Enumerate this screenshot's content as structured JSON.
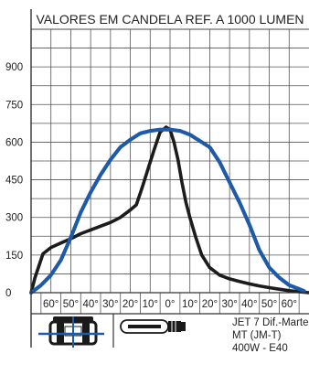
{
  "chart_data": {
    "type": "line",
    "title": "VALORES EM CANDELA REF. A 1000 LUMEN",
    "xlabel": "",
    "ylabel": "",
    "y_ticks": [
      "0",
      "150",
      "300",
      "450",
      "600",
      "750",
      "900"
    ],
    "x_ticks": [
      "60°",
      "50°",
      "40°",
      "30°",
      "20°",
      "10°",
      "0°",
      "10°",
      "20°",
      "30°",
      "40°",
      "50°",
      "60°"
    ],
    "xlim": [
      -70,
      70
    ],
    "ylim": [
      0,
      1050
    ],
    "grid": true,
    "series": [
      {
        "color": "#1c1c1c",
        "style": "solid",
        "x": [
          -70,
          -68,
          -64,
          -60,
          -55,
          -50,
          -45,
          -40,
          -35,
          -30,
          -25,
          -20,
          -17,
          -14,
          -11,
          -8,
          -5,
          -2,
          0,
          2,
          4,
          6,
          8,
          10,
          13,
          16,
          20,
          25,
          30,
          35,
          40,
          45,
          50,
          55,
          60,
          65,
          70
        ],
        "y": [
          0,
          60,
          155,
          180,
          198,
          215,
          235,
          250,
          265,
          280,
          300,
          330,
          350,
          420,
          495,
          570,
          640,
          660,
          650,
          600,
          530,
          440,
          360,
          300,
          220,
          150,
          100,
          70,
          55,
          45,
          35,
          27,
          20,
          14,
          8,
          4,
          0
        ]
      },
      {
        "color": "#1f5aa8",
        "style": "dotted",
        "x": [
          -70,
          -65,
          -60,
          -55,
          -50,
          -45,
          -40,
          -35,
          -30,
          -25,
          -20,
          -15,
          -10,
          -5,
          0,
          5,
          10,
          15,
          20,
          25,
          30,
          35,
          40,
          45,
          50,
          55,
          60,
          65,
          68
        ],
        "y": [
          0,
          30,
          70,
          130,
          220,
          320,
          400,
          470,
          530,
          580,
          610,
          635,
          645,
          650,
          650,
          645,
          630,
          605,
          580,
          520,
          440,
          360,
          270,
          170,
          100,
          60,
          30,
          15,
          5
        ]
      }
    ]
  },
  "fixture": {
    "line1": "JET 7 Dif.-Martel.",
    "line2": "MT (JM-T)",
    "line3": "400W - E40"
  }
}
